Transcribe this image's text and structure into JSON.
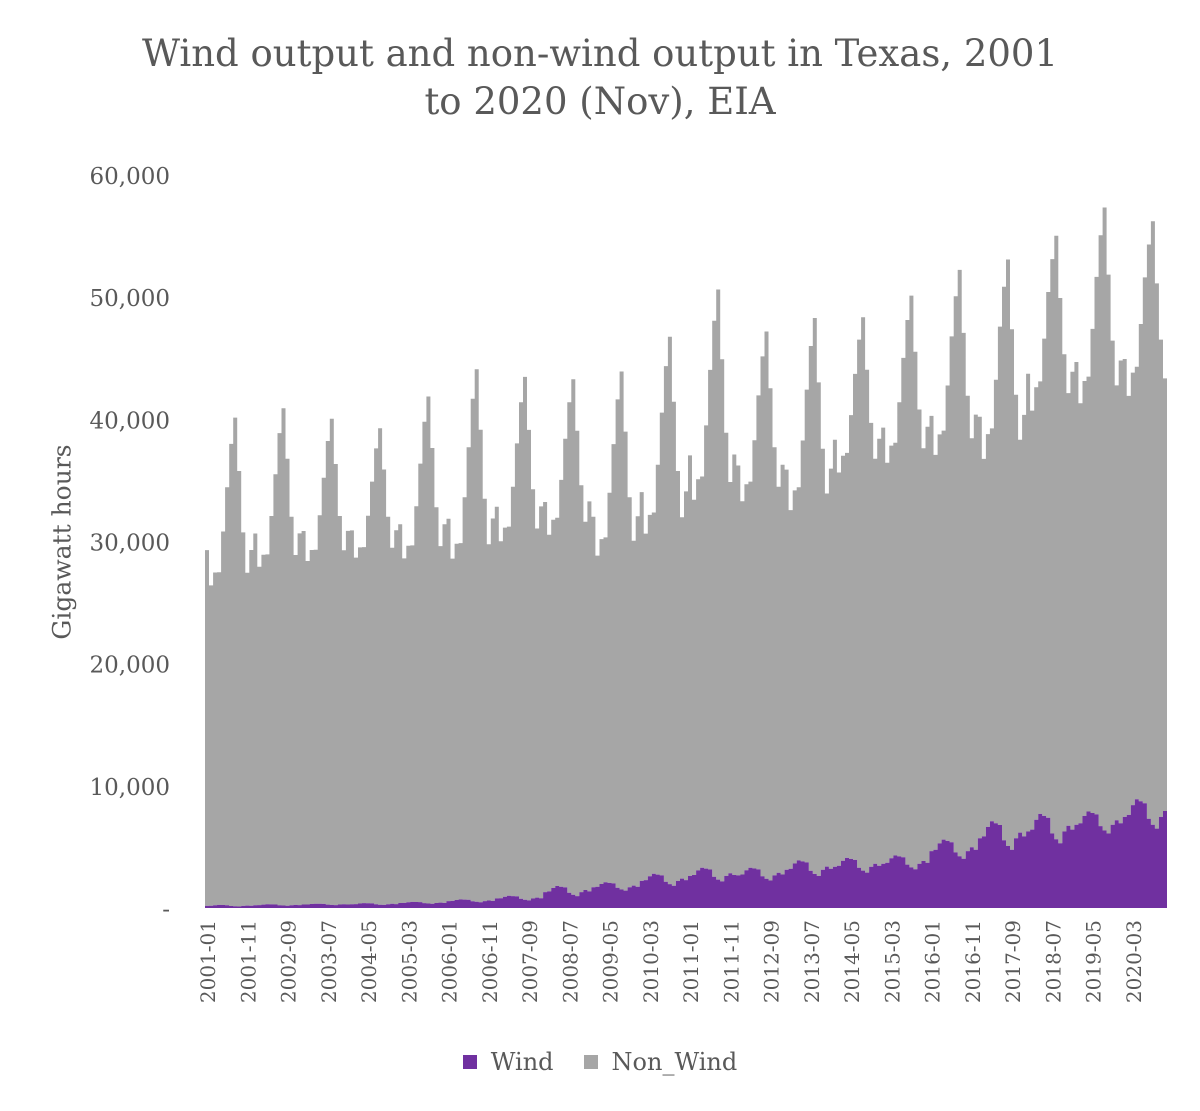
{
  "chart_data": {
    "type": "area",
    "stacked": true,
    "title_lines": [
      "Wind output and non-wind output in Texas, 2001",
      "to 2020 (Nov), EIA"
    ],
    "ylabel": "Gigawatt hours",
    "xlabel": "",
    "ylim": [
      0,
      60000
    ],
    "y_ticks": [
      0,
      10000,
      20000,
      30000,
      40000,
      50000,
      60000
    ],
    "y_tick_labels": [
      "-",
      "10,000",
      "20,000",
      "30,000",
      "40,000",
      "50,000",
      "60,000"
    ],
    "x_start": "2001-01",
    "x_end": "2020-11",
    "x_tick_every_months": 10,
    "x_tick_labels": [
      "2001-01",
      "2001-11",
      "2002-09",
      "2003-07",
      "2004-05",
      "2005-03",
      "2006-01",
      "2006-11",
      "2007-09",
      "2008-07",
      "2009-05",
      "2010-03",
      "2011-01",
      "2011-11",
      "2012-09",
      "2013-07",
      "2014-05",
      "2015-03",
      "2016-01",
      "2016-11",
      "2017-09",
      "2018-07",
      "2019-05",
      "2020-03"
    ],
    "legend_position": "bottom",
    "series": [
      {
        "name": "Wind",
        "color": "#7030a0",
        "annual_profile": [
          {
            "year": 2001,
            "monthly_min": 80,
            "monthly_max": 250
          },
          {
            "year": 2002,
            "monthly_min": 150,
            "monthly_max": 300
          },
          {
            "year": 2003,
            "monthly_min": 200,
            "monthly_max": 350
          },
          {
            "year": 2004,
            "monthly_min": 200,
            "monthly_max": 400
          },
          {
            "year": 2005,
            "monthly_min": 300,
            "monthly_max": 500
          },
          {
            "year": 2006,
            "monthly_min": 400,
            "monthly_max": 700
          },
          {
            "year": 2007,
            "monthly_min": 500,
            "monthly_max": 1000
          },
          {
            "year": 2008,
            "monthly_min": 700,
            "monthly_max": 1800
          },
          {
            "year": 2009,
            "monthly_min": 1200,
            "monthly_max": 2100
          },
          {
            "year": 2010,
            "monthly_min": 1500,
            "monthly_max": 2800
          },
          {
            "year": 2011,
            "monthly_min": 1800,
            "monthly_max": 3300
          },
          {
            "year": 2012,
            "monthly_min": 1900,
            "monthly_max": 3300
          },
          {
            "year": 2013,
            "monthly_min": 2200,
            "monthly_max": 3900
          },
          {
            "year": 2014,
            "monthly_min": 2500,
            "monthly_max": 4100
          },
          {
            "year": 2015,
            "monthly_min": 2800,
            "monthly_max": 4300
          },
          {
            "year": 2016,
            "monthly_min": 3500,
            "monthly_max": 5600
          },
          {
            "year": 2017,
            "monthly_min": 4000,
            "monthly_max": 7100
          },
          {
            "year": 2018,
            "monthly_min": 4500,
            "monthly_max": 7700
          },
          {
            "year": 2019,
            "monthly_min": 5500,
            "monthly_max": 7900
          },
          {
            "year": 2020,
            "monthly_min": 5700,
            "monthly_max": 8900
          }
        ]
      },
      {
        "name": "Non_Wind",
        "color": "#a6a6a6",
        "annual_profile": [
          {
            "year": 2001,
            "monthly_min": 25500,
            "monthly_max": 40000
          },
          {
            "year": 2002,
            "monthly_min": 27000,
            "monthly_max": 40700
          },
          {
            "year": 2003,
            "monthly_min": 27500,
            "monthly_max": 39800
          },
          {
            "year": 2004,
            "monthly_min": 27800,
            "monthly_max": 39000
          },
          {
            "year": 2005,
            "monthly_min": 27500,
            "monthly_max": 41500
          },
          {
            "year": 2006,
            "monthly_min": 27200,
            "monthly_max": 43600
          },
          {
            "year": 2007,
            "monthly_min": 28500,
            "monthly_max": 42800
          },
          {
            "year": 2008,
            "monthly_min": 28500,
            "monthly_max": 42200
          },
          {
            "year": 2009,
            "monthly_min": 26300,
            "monthly_max": 42400
          },
          {
            "year": 2010,
            "monthly_min": 27500,
            "monthly_max": 44800
          },
          {
            "year": 2011,
            "monthly_min": 29800,
            "monthly_max": 48300
          },
          {
            "year": 2012,
            "monthly_min": 29800,
            "monthly_max": 44800
          },
          {
            "year": 2013,
            "monthly_min": 28500,
            "monthly_max": 45500
          },
          {
            "year": 2014,
            "monthly_min": 31500,
            "monthly_max": 45300
          },
          {
            "year": 2015,
            "monthly_min": 32000,
            "monthly_max": 46800
          },
          {
            "year": 2016,
            "monthly_min": 31500,
            "monthly_max": 48000
          },
          {
            "year": 2017,
            "monthly_min": 30000,
            "monthly_max": 48000
          },
          {
            "year": 2018,
            "monthly_min": 33500,
            "monthly_max": 49400
          },
          {
            "year": 2019,
            "monthly_min": 33500,
            "monthly_max": 51000
          },
          {
            "year": 2020,
            "monthly_min": 33500,
            "monthly_max": 49400
          }
        ]
      }
    ]
  }
}
